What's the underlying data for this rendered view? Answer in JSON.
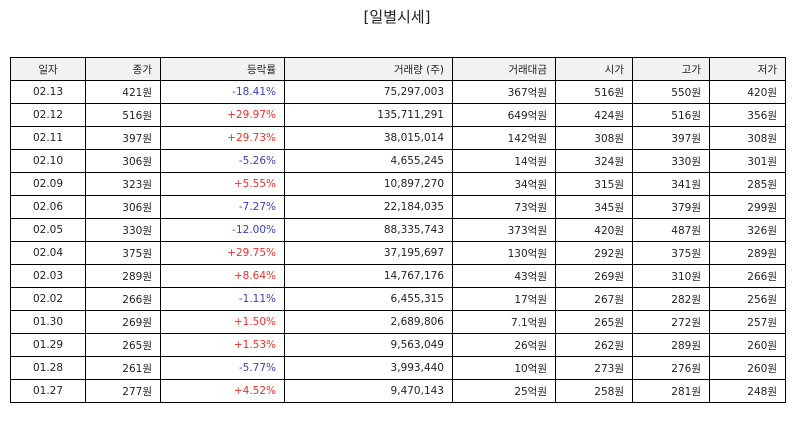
{
  "title": "[일별시세]",
  "columns": [
    "일자",
    "종가",
    "등락률",
    "거래량 (주)",
    "거래대금",
    "시가",
    "고가",
    "저가"
  ],
  "colors": {
    "up": "#e8312d",
    "down": "#3a3fb8",
    "header_bg": "#f2f2f2"
  },
  "rows": [
    {
      "date": "02.13",
      "close": "421원",
      "change": "-18.41%",
      "dir": "down",
      "volume": "75,297,003",
      "amount": "367억원",
      "open": "516원",
      "high": "550원",
      "low": "420원"
    },
    {
      "date": "02.12",
      "close": "516원",
      "change": "+29.97%",
      "dir": "up",
      "volume": "135,711,291",
      "amount": "649억원",
      "open": "424원",
      "high": "516원",
      "low": "356원"
    },
    {
      "date": "02.11",
      "close": "397원",
      "change": "+29.73%",
      "dir": "up",
      "volume": "38,015,014",
      "amount": "142억원",
      "open": "308원",
      "high": "397원",
      "low": "308원"
    },
    {
      "date": "02.10",
      "close": "306원",
      "change": "-5.26%",
      "dir": "down",
      "volume": "4,655,245",
      "amount": "14억원",
      "open": "324원",
      "high": "330원",
      "low": "301원"
    },
    {
      "date": "02.09",
      "close": "323원",
      "change": "+5.55%",
      "dir": "up",
      "volume": "10,897,270",
      "amount": "34억원",
      "open": "315원",
      "high": "341원",
      "low": "285원"
    },
    {
      "date": "02.06",
      "close": "306원",
      "change": "-7.27%",
      "dir": "down",
      "volume": "22,184,035",
      "amount": "73억원",
      "open": "345원",
      "high": "379원",
      "low": "299원"
    },
    {
      "date": "02.05",
      "close": "330원",
      "change": "-12.00%",
      "dir": "down",
      "volume": "88,335,743",
      "amount": "373억원",
      "open": "420원",
      "high": "487원",
      "low": "326원"
    },
    {
      "date": "02.04",
      "close": "375원",
      "change": "+29.75%",
      "dir": "up",
      "volume": "37,195,697",
      "amount": "130억원",
      "open": "292원",
      "high": "375원",
      "low": "289원"
    },
    {
      "date": "02.03",
      "close": "289원",
      "change": "+8.64%",
      "dir": "up",
      "volume": "14,767,176",
      "amount": "43억원",
      "open": "269원",
      "high": "310원",
      "low": "266원"
    },
    {
      "date": "02.02",
      "close": "266원",
      "change": "-1.11%",
      "dir": "down",
      "volume": "6,455,315",
      "amount": "17억원",
      "open": "267원",
      "high": "282원",
      "low": "256원"
    },
    {
      "date": "01.30",
      "close": "269원",
      "change": "+1.50%",
      "dir": "up",
      "volume": "2,689,806",
      "amount": "7.1억원",
      "open": "265원",
      "high": "272원",
      "low": "257원"
    },
    {
      "date": "01.29",
      "close": "265원",
      "change": "+1.53%",
      "dir": "up",
      "volume": "9,563,049",
      "amount": "26억원",
      "open": "262원",
      "high": "289원",
      "low": "260원"
    },
    {
      "date": "01.28",
      "close": "261원",
      "change": "-5.77%",
      "dir": "down",
      "volume": "3,993,440",
      "amount": "10억원",
      "open": "273원",
      "high": "276원",
      "low": "260원"
    },
    {
      "date": "01.27",
      "close": "277원",
      "change": "+4.52%",
      "dir": "up",
      "volume": "9,470,143",
      "amount": "25억원",
      "open": "258원",
      "high": "281원",
      "low": "248원"
    }
  ]
}
